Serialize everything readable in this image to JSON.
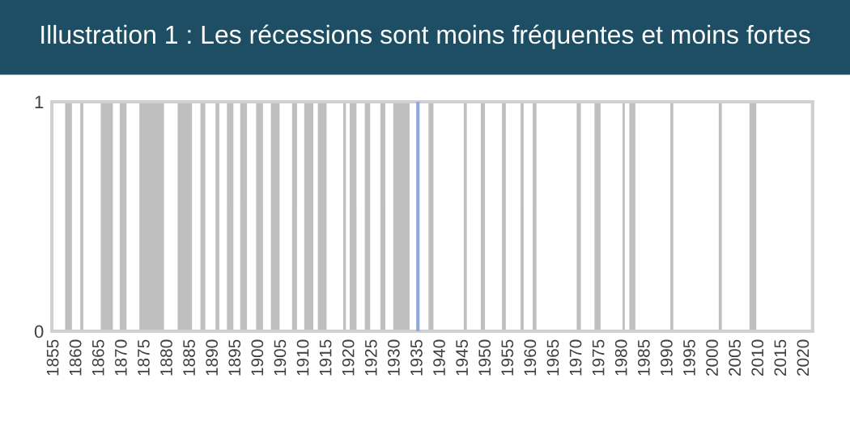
{
  "chart_data": {
    "type": "area",
    "title": "Illustration 1 : Les récessions sont moins fréquentes et moins fortes",
    "series": [
      {
        "color": "#bfbfbf",
        "x": [
          1854.5,
          1857.42,
          1857.42,
          1858.92,
          1858.92,
          1860.75,
          1860.75,
          1861.42,
          1861.42,
          1865.25,
          1865.25,
          1867.92,
          1867.92,
          1869.42,
          1869.42,
          1870.92,
          1870.92,
          1873.75,
          1873.75,
          1879.17,
          1879.17,
          1882.17,
          1882.17,
          1885.33,
          1885.33,
          1887.17,
          1887.17,
          1888.25,
          1888.25,
          1890.5,
          1890.5,
          1891.33,
          1891.33,
          1893.0,
          1893.0,
          1894.42,
          1894.42,
          1895.92,
          1895.92,
          1897.42,
          1897.42,
          1899.42,
          1899.42,
          1900.92,
          1900.92,
          1902.67,
          1902.67,
          1904.58,
          1904.58,
          1907.33,
          1907.33,
          1908.42,
          1908.42,
          1910.0,
          1910.0,
          1912.0,
          1912.0,
          1913.0,
          1913.0,
          1914.92,
          1914.92,
          1918.58,
          1918.58,
          1919.17,
          1919.17,
          1920.0,
          1920.0,
          1921.5,
          1921.5,
          1923.33,
          1923.33,
          1924.5,
          1924.5,
          1926.75,
          1926.75,
          1927.83,
          1927.83,
          1929.58,
          1929.58,
          1933.17,
          1933.17,
          1937.33,
          1937.33,
          1938.42,
          1938.42,
          1945.08,
          1945.08,
          1945.75,
          1945.75,
          1948.83,
          1948.83,
          1949.75,
          1949.75,
          1953.5,
          1953.5,
          1954.33,
          1954.33,
          1957.58,
          1957.58,
          1958.25,
          1958.25,
          1960.25,
          1960.25,
          1961.08,
          1961.08,
          1969.92,
          1969.92,
          1970.83,
          1970.83,
          1973.83,
          1973.83,
          1975.17,
          1975.17,
          1980.0,
          1980.0,
          1980.5,
          1980.5,
          1981.5,
          1981.5,
          1982.83,
          1982.83,
          1990.5,
          1990.5,
          1991.17,
          1991.17,
          2001.17,
          2001.17,
          2001.83,
          2001.83,
          2007.92,
          2007.92,
          2009.42,
          2009.42,
          2021.8
        ],
        "values": [
          0,
          0,
          1,
          1,
          0,
          0,
          1,
          1,
          0,
          0,
          1,
          1,
          0,
          0,
          1,
          1,
          0,
          0,
          1,
          1,
          0,
          0,
          1,
          1,
          0,
          0,
          1,
          1,
          0,
          0,
          1,
          1,
          0,
          0,
          1,
          1,
          0,
          0,
          1,
          1,
          0,
          0,
          1,
          1,
          0,
          0,
          1,
          1,
          0,
          0,
          1,
          1,
          0,
          0,
          1,
          1,
          0,
          0,
          1,
          1,
          0,
          0,
          1,
          1,
          0,
          0,
          1,
          1,
          0,
          0,
          1,
          1,
          0,
          0,
          1,
          1,
          0,
          0,
          1,
          1,
          0,
          0,
          1,
          1,
          0,
          0,
          1,
          1,
          0,
          0,
          1,
          1,
          0,
          0,
          1,
          1,
          0,
          0,
          1,
          1,
          0,
          0,
          1,
          1,
          0,
          0,
          1,
          1,
          0,
          0,
          1,
          1,
          0,
          0,
          1,
          1,
          0,
          0,
          1,
          1,
          0,
          0,
          1,
          1,
          0,
          0,
          1,
          1,
          0,
          0,
          1,
          1,
          0,
          0
        ]
      }
    ],
    "xlim": [
      1854.5,
      2021.8
    ],
    "xticks": [
      1855,
      1860,
      1865,
      1870,
      1875,
      1880,
      1885,
      1890,
      1895,
      1900,
      1905,
      1910,
      1915,
      1920,
      1925,
      1930,
      1935,
      1940,
      1945,
      1950,
      1955,
      1960,
      1965,
      1970,
      1975,
      1980,
      1985,
      1990,
      1995,
      2000,
      2005,
      2010,
      2015,
      2020
    ],
    "ylim": [
      0,
      1
    ],
    "yticks": [
      0,
      1
    ],
    "ref_lines": [
      {
        "axis": "x",
        "value": 1935,
        "color": "#8eaadb"
      }
    ],
    "grid": false,
    "legend": false
  }
}
